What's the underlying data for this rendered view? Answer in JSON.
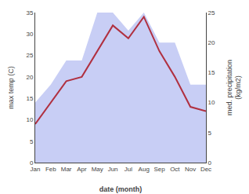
{
  "chart_data": {
    "type": "line",
    "categories": [
      "Jan",
      "Feb",
      "Mar",
      "Apr",
      "May",
      "Jun",
      "Jul",
      "Aug",
      "Sep",
      "Oct",
      "Nov",
      "Dec"
    ],
    "series": [
      {
        "type": "area",
        "axis": "y2",
        "color": "#c8cef5",
        "values": [
          10,
          13,
          17,
          17,
          25,
          25,
          22,
          25,
          20,
          20,
          13,
          13
        ]
      },
      {
        "type": "line",
        "color": "#b03040",
        "values": [
          9,
          14,
          19,
          20,
          26,
          32,
          29,
          34,
          26,
          20,
          13,
          12
        ]
      }
    ],
    "xlabel": "date (month)",
    "ylabel": "max temp (C)",
    "y2label": "med. precipitation\n(kg/m2)",
    "ylim": [
      0,
      35
    ],
    "yticks": [
      0,
      5,
      10,
      15,
      20,
      25,
      30,
      35
    ],
    "y2lim": [
      0,
      25
    ],
    "y2ticks": [
      0,
      5,
      10,
      15,
      20,
      25
    ],
    "grid": false
  }
}
